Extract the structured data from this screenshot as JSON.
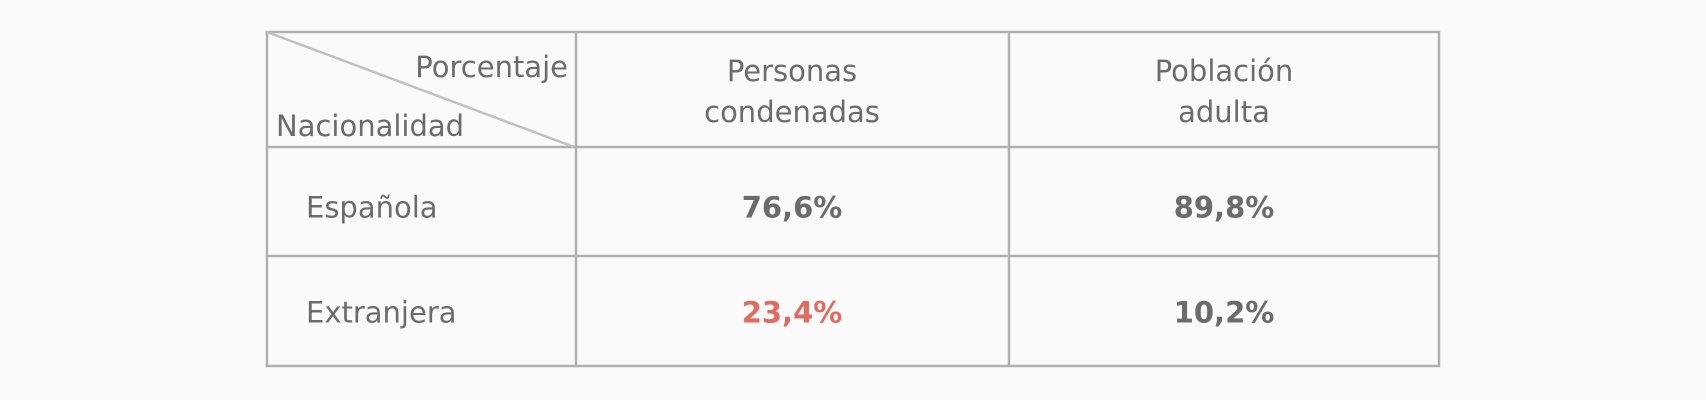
{
  "table": {
    "corner_top": "Porcentaje",
    "corner_bottom": "Nacionalidad",
    "columns": [
      "Personas condenadas",
      "Población adulta"
    ],
    "rows": [
      [
        "Española",
        "76,6%",
        "89,8%"
      ],
      [
        "Extranjera",
        "23,4%",
        "10,2%"
      ]
    ],
    "highlight": {
      "row": 1,
      "col": 1,
      "color": "#e06b5f"
    }
  }
}
